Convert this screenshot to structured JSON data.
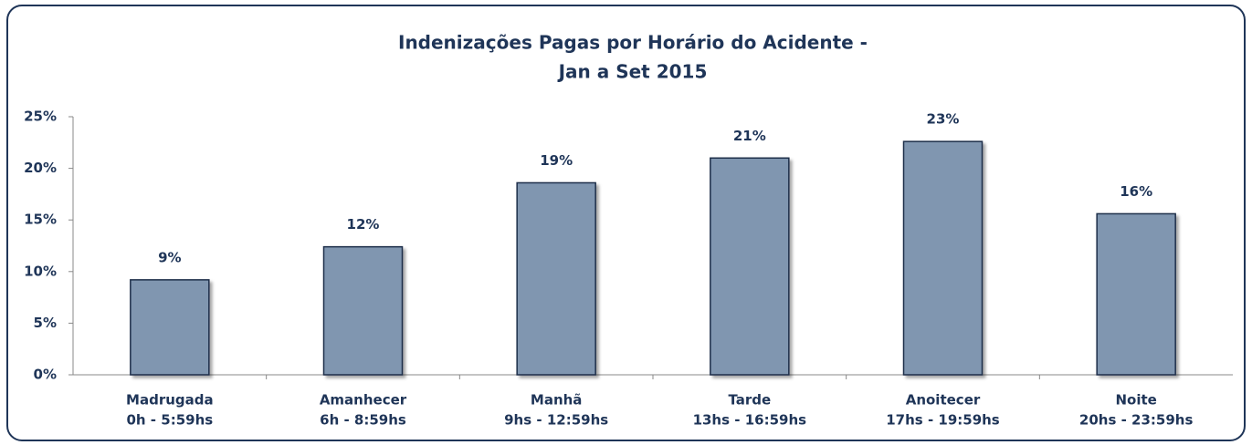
{
  "chart_data": {
    "type": "bar",
    "title": [
      "Indenizações Pagas por Horário do Acidente -",
      "Jan a Set 2015"
    ],
    "categories": [
      [
        "Madrugada",
        "0h - 5:59hs"
      ],
      [
        "Amanhecer",
        "6h - 8:59hs"
      ],
      [
        "Manhã",
        "9hs - 12:59hs"
      ],
      [
        "Tarde",
        "13hs - 16:59hs"
      ],
      [
        "Anoitecer",
        "17hs - 19:59hs"
      ],
      [
        "Noite",
        "20hs - 23:59hs"
      ]
    ],
    "values": [
      9.2,
      12.4,
      18.6,
      21.0,
      22.6,
      15.6
    ],
    "value_labels": [
      "9%",
      "12%",
      "19%",
      "21%",
      "23%",
      "16%"
    ],
    "color": "#8096b0",
    "ylim": [
      0,
      25
    ],
    "yticks": [
      {
        "value": 0,
        "label": "0%"
      },
      {
        "value": 5,
        "label": "5%"
      },
      {
        "value": 10,
        "label": "10%"
      },
      {
        "value": 15,
        "label": "15%"
      },
      {
        "value": 20,
        "label": "20%"
      },
      {
        "value": 25,
        "label": "25%"
      }
    ],
    "grid": false
  }
}
